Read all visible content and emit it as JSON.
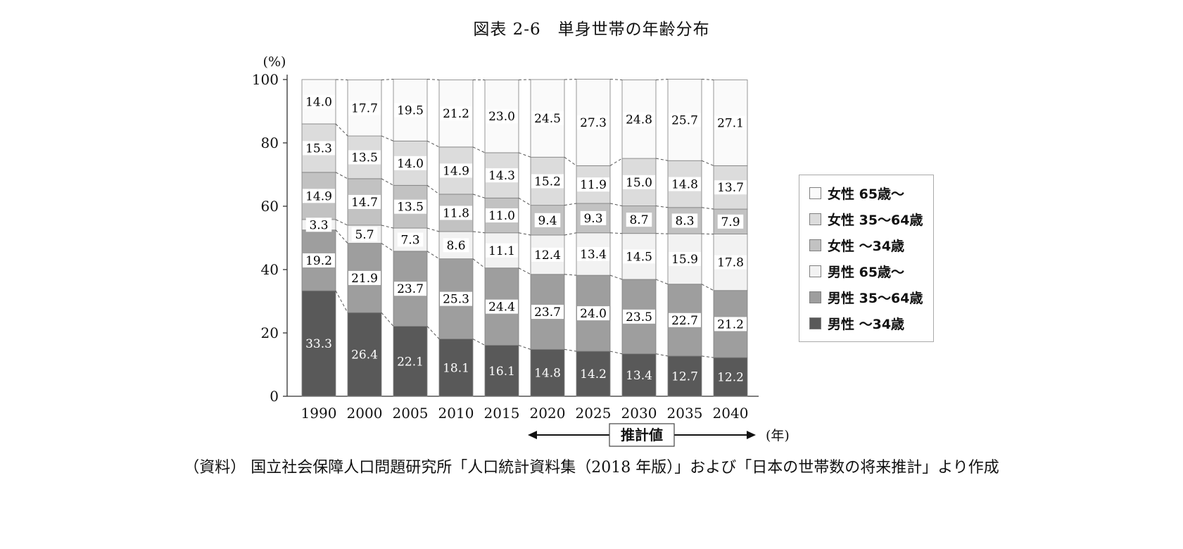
{
  "title": "図表 2-6　単身世帯の年齢分布",
  "caption": "（資料） 国立社会保障人口問題研究所「人口統計資料集（2018 年版）」および「日本の世帯数の将来推計」より作成",
  "chart_data": {
    "type": "bar",
    "stacked": true,
    "title": "図表 2-6　単身世帯の年齢分布",
    "unit_label": "(%)",
    "x_axis_label": "(年)",
    "ylim": [
      0,
      100
    ],
    "y_ticks": [
      0,
      20,
      40,
      60,
      80,
      100
    ],
    "grid": false,
    "legend_position": "right",
    "categories": [
      "1990",
      "2000",
      "2005",
      "2010",
      "2015",
      "2020",
      "2025",
      "2030",
      "2035",
      "2040"
    ],
    "series": [
      {
        "name": "男性 ～34歳",
        "color": "#595959",
        "label_color": "#ffffff",
        "values": [
          33.3,
          26.4,
          22.1,
          18.1,
          16.1,
          14.8,
          14.2,
          13.4,
          12.7,
          12.2
        ]
      },
      {
        "name": "男性 35～64歳",
        "color": "#9e9e9e",
        "label_color": "#000000",
        "values": [
          19.2,
          21.9,
          23.7,
          25.3,
          24.4,
          23.7,
          24.0,
          23.5,
          22.7,
          21.2
        ]
      },
      {
        "name": "男性 65歳～",
        "color": "#f2f2f2",
        "label_color": "#000000",
        "values": [
          3.3,
          5.7,
          7.3,
          8.6,
          11.1,
          12.4,
          13.4,
          14.5,
          15.9,
          17.8
        ]
      },
      {
        "name": "女性 ～34歳",
        "color": "#c2c2c2",
        "label_color": "#000000",
        "values": [
          14.9,
          14.7,
          13.5,
          11.8,
          11.0,
          9.4,
          9.3,
          8.7,
          8.3,
          7.9
        ]
      },
      {
        "name": "女性 35～64歳",
        "color": "#dcdcdc",
        "label_color": "#000000",
        "values": [
          15.3,
          13.5,
          14.0,
          14.9,
          14.3,
          15.2,
          11.9,
          15.0,
          14.8,
          13.7
        ]
      },
      {
        "name": "女性 65歳～",
        "color": "#fafafa",
        "label_color": "#000000",
        "values": [
          14.0,
          17.7,
          19.5,
          21.2,
          23.0,
          24.5,
          27.3,
          24.8,
          25.7,
          27.1
        ]
      }
    ],
    "legend_order": [
      5,
      4,
      3,
      2,
      1,
      0
    ],
    "estimate_label": "推計値",
    "estimate_range": [
      "2020",
      "2040"
    ]
  }
}
